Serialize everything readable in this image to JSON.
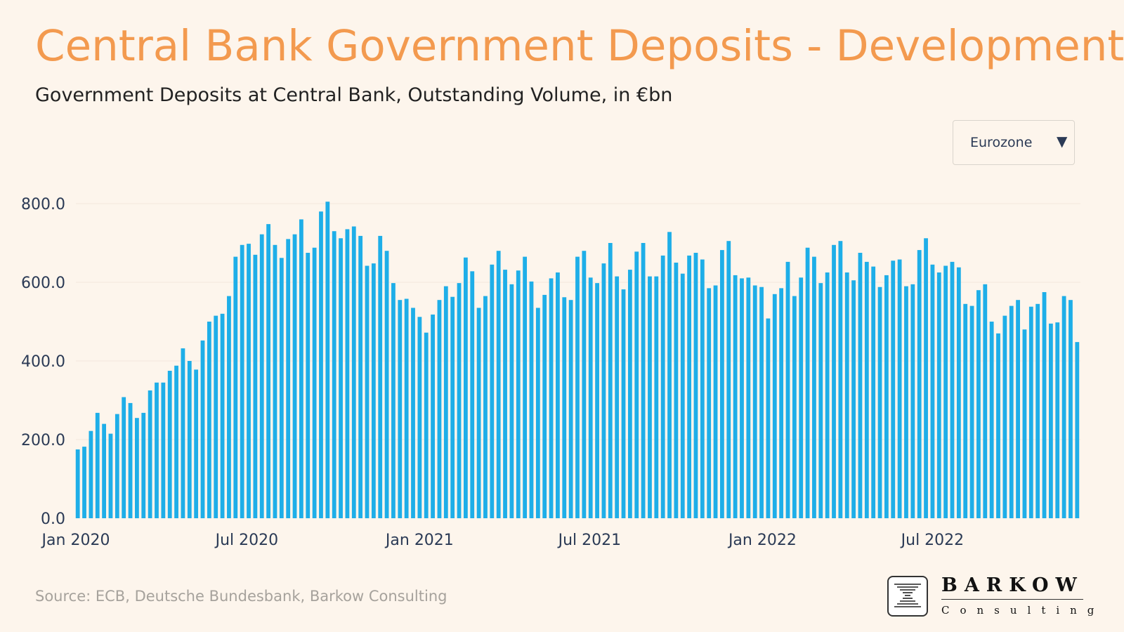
{
  "title": "Central Bank Government Deposits - Development",
  "subtitle": "Government Deposits at Central Bank, Outstanding Volume, in €bn",
  "dropdown": {
    "selected": "Eurozone",
    "caret": "▼",
    "caret_icon": "triangle-down-icon"
  },
  "source": "Source: ECB, Deutsche Bundesbank, Barkow Consulting",
  "logo": {
    "word": "BARKOW",
    "sub": "Consulting"
  },
  "colors": {
    "bar": "#1eaee8",
    "title": "#f39a4f",
    "axis_text": "#2b3a55",
    "grid": "#f2e8dc",
    "background": "#fdf5ec"
  },
  "chart_data": {
    "type": "bar",
    "frequency": "weekly",
    "x_start": "2020-01-03",
    "x_ticks": [
      {
        "label": "Jan 2020",
        "date": "2020-01-01"
      },
      {
        "label": "Jul 2020",
        "date": "2020-07-01"
      },
      {
        "label": "Jan 2021",
        "date": "2021-01-01"
      },
      {
        "label": "Jul 2021",
        "date": "2021-07-01"
      },
      {
        "label": "Jan 2022",
        "date": "2022-01-01"
      },
      {
        "label": "Jul 2022",
        "date": "2022-07-01"
      }
    ],
    "ylim": [
      0,
      800
    ],
    "y_ticks": [
      "0.0",
      "200.0",
      "400.0",
      "600.0",
      "800.0"
    ],
    "grid": true,
    "series": [
      {
        "values": [
          175,
          182,
          222,
          268,
          240,
          215,
          265,
          308,
          293,
          255,
          268,
          325,
          345,
          345,
          375,
          388,
          432,
          400,
          378,
          452,
          500,
          515,
          520,
          565,
          665,
          695,
          698,
          670,
          722,
          748,
          695,
          662,
          710,
          722,
          760,
          675,
          688,
          780,
          805,
          730,
          712,
          735,
          742,
          718,
          642,
          648,
          718,
          680,
          598,
          555,
          558,
          535,
          512,
          472,
          518,
          555,
          590,
          563,
          598,
          663,
          628,
          535,
          565,
          645,
          680,
          632,
          595,
          630,
          665,
          602,
          535,
          568,
          610,
          625,
          562,
          555,
          665,
          680,
          612,
          598,
          648,
          700,
          615,
          582,
          632,
          678,
          700,
          615,
          615,
          668,
          728,
          650,
          622,
          668,
          675,
          658,
          585,
          592,
          682,
          705,
          618,
          610,
          612,
          592,
          588,
          508,
          570,
          585,
          652,
          565,
          612,
          688,
          665,
          598,
          625,
          695,
          705,
          625,
          605,
          675,
          652,
          640,
          588,
          618,
          655,
          658,
          590,
          595,
          682,
          712,
          645,
          625,
          642,
          652,
          638,
          545,
          540,
          580,
          595,
          500,
          470,
          515,
          540,
          555,
          480,
          538,
          545,
          575,
          495,
          498,
          565,
          555,
          448
        ]
      }
    ]
  }
}
